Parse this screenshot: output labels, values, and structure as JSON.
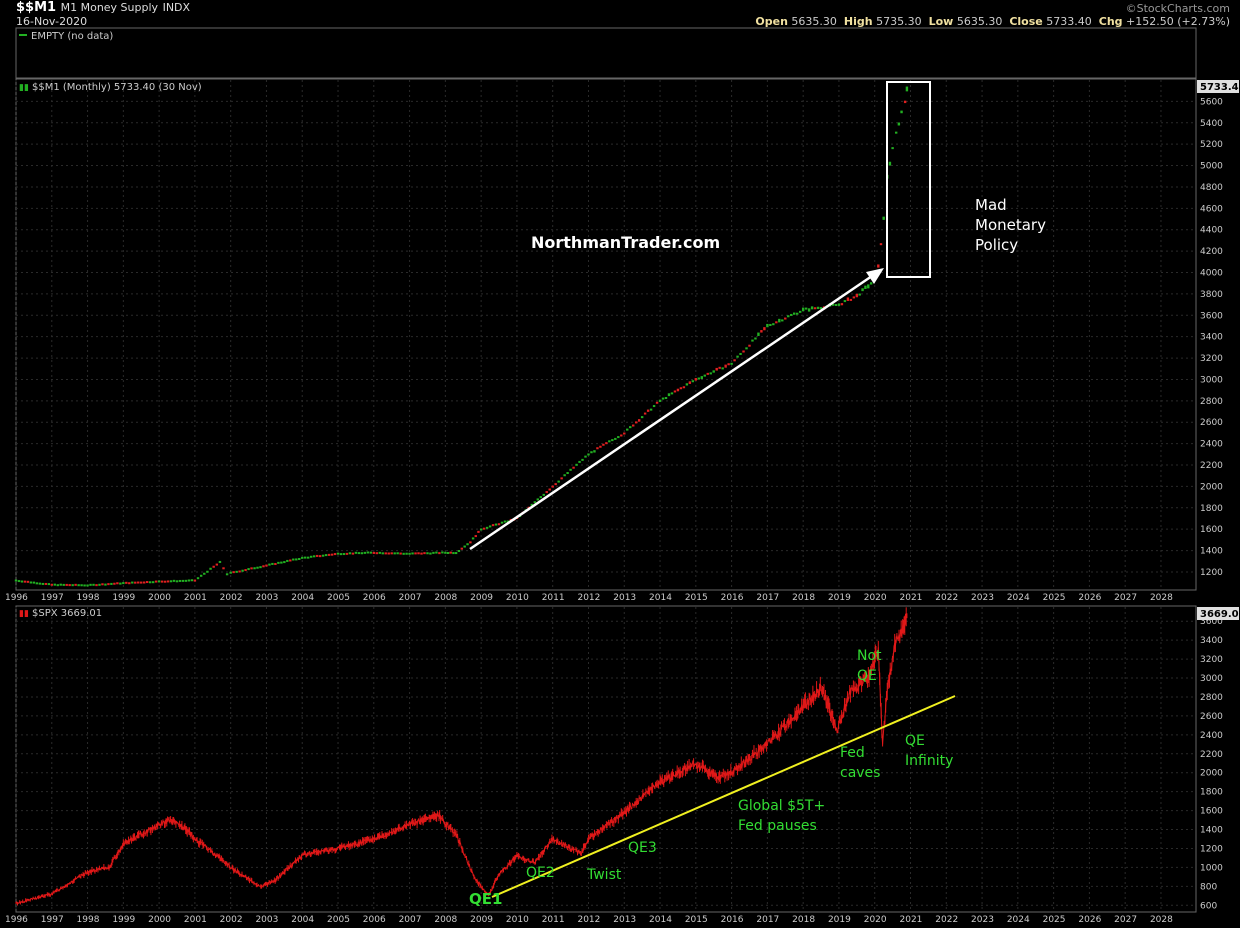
{
  "header": {
    "symbol": "$$M1",
    "name": "M1 Money Supply",
    "exchange": "INDX",
    "date": "16-Nov-2020",
    "credit": "©StockCharts.com",
    "open_label": "Open",
    "open": "5635.30",
    "high_label": "High",
    "high": "5735.30",
    "low_label": "Low",
    "low": "5635.30",
    "close_label": "Close",
    "close": "5733.40",
    "chg_label": "Chg",
    "chg": "+152.50 (+2.73%)"
  },
  "panels": {
    "empty_label": "EMPTY (no data)",
    "m1_label": "$$M1 (Monthly) 5733.40 (30 Nov)",
    "m1_last": "5733.40",
    "spx_label": "$SPX 3669.01",
    "spx_last": "3669.01"
  },
  "annotations": {
    "watermark": "NorthmanTrader.com",
    "mad1": "Mad",
    "mad2": "Monetary",
    "mad3": "Policy",
    "qe1": "QE1",
    "qe2": "QE2",
    "twist": "Twist",
    "qe3": "QE3",
    "global1": "Global $5T+",
    "global2": "Fed pauses",
    "fed1": "Fed",
    "fed2": "caves",
    "notqe1": "Not",
    "notqe2": "QE",
    "inf1": "QE",
    "inf2": "Infinity"
  },
  "colors": {
    "up": "#22b022",
    "down": "#e02020",
    "spx": "#e01818",
    "trend": "#f0f020",
    "green_text": "#33dd33",
    "arrow": "#ffffff"
  },
  "chart_data": [
    {
      "type": "line",
      "title": "$$M1 (Monthly) 5733.40 (30 Nov)",
      "x_ticks": [
        "1996",
        "1997",
        "1998",
        "1999",
        "2000",
        "2001",
        "2002",
        "2003",
        "2004",
        "2005",
        "2006",
        "2007",
        "2008",
        "2009",
        "2010",
        "2011",
        "2012",
        "2013",
        "2014",
        "2015",
        "2016",
        "2017",
        "2018",
        "2019",
        "2020",
        "2021",
        "2022",
        "2023",
        "2024",
        "2025",
        "2026",
        "2027",
        "2028"
      ],
      "y_ticks": [
        1200,
        1400,
        1600,
        1800,
        2000,
        2200,
        2400,
        2600,
        2800,
        3000,
        3200,
        3400,
        3600,
        3800,
        4000,
        4200,
        4400,
        4600,
        4800,
        5000,
        5200,
        5400,
        5600
      ],
      "ylim": [
        1050,
        5800
      ],
      "x": [
        1996,
        1997,
        1998,
        1999,
        2000,
        2001,
        2001.7,
        2001.9,
        2002,
        2003,
        2004,
        2005,
        2006,
        2007,
        2008,
        2008.3,
        2008.7,
        2009,
        2010,
        2011,
        2012,
        2013,
        2014,
        2015,
        2016,
        2017,
        2018,
        2019,
        2019.5,
        2019.9,
        2020.1,
        2020.25,
        2020.35,
        2020.5,
        2020.6,
        2020.75,
        2020.85,
        2020.9
      ],
      "y": [
        1120,
        1080,
        1075,
        1095,
        1110,
        1120,
        1290,
        1180,
        1190,
        1260,
        1330,
        1370,
        1380,
        1370,
        1380,
        1380,
        1480,
        1600,
        1700,
        2000,
        2300,
        2500,
        2800,
        3000,
        3150,
        3500,
        3650,
        3700,
        3780,
        3900,
        4050,
        4500,
        4900,
        5150,
        5300,
        5500,
        5600,
        5733
      ]
    },
    {
      "type": "line",
      "title": "$SPX 3669.01",
      "x_ticks": [
        "1996",
        "1997",
        "1998",
        "1999",
        "2000",
        "2001",
        "2002",
        "2003",
        "2004",
        "2005",
        "2006",
        "2007",
        "2008",
        "2009",
        "2010",
        "2011",
        "2012",
        "2013",
        "2014",
        "2015",
        "2016",
        "2017",
        "2018",
        "2019",
        "2020",
        "2021",
        "2022",
        "2023",
        "2024",
        "2025",
        "2026",
        "2027",
        "2028"
      ],
      "y_ticks": [
        600,
        800,
        1000,
        1200,
        1400,
        1600,
        1800,
        2000,
        2200,
        2400,
        2600,
        2800,
        3000,
        3200,
        3400,
        3600
      ],
      "ylim": [
        550,
        3750
      ],
      "x": [
        1996,
        1997,
        1998,
        1998.6,
        1999,
        2000,
        2000.3,
        2000.7,
        2001,
        2001.7,
        2002,
        2002.8,
        2003.2,
        2004,
        2005,
        2006,
        2007,
        2007.8,
        2008.3,
        2008.8,
        2009.2,
        2009.5,
        2010,
        2010.5,
        2011,
        2011.5,
        2011.8,
        2012,
        2013,
        2014,
        2015,
        2015.6,
        2016,
        2017,
        2018,
        2018.5,
        2018.95,
        2019.3,
        2019.8,
        2020.1,
        2020.22,
        2020.35,
        2020.6,
        2020.8,
        2020.9
      ],
      "y": [
        620,
        720,
        950,
        1000,
        1250,
        1450,
        1500,
        1420,
        1300,
        1100,
        1000,
        800,
        850,
        1130,
        1200,
        1300,
        1450,
        1550,
        1350,
        900,
        700,
        930,
        1120,
        1050,
        1300,
        1200,
        1150,
        1300,
        1580,
        1900,
        2100,
        1950,
        2000,
        2300,
        2700,
        2900,
        2450,
        2850,
        3000,
        3300,
        2300,
        2900,
        3400,
        3500,
        3669
      ]
    }
  ]
}
